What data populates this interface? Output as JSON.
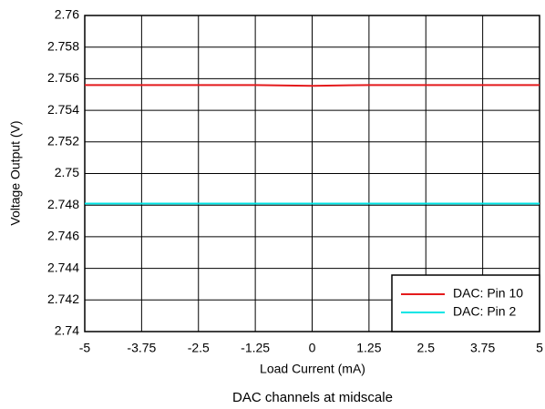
{
  "chart_data": {
    "type": "line",
    "xlabel": "Load Current (mA)",
    "ylabel": "Voltage Output (V)",
    "caption": "DAC channels at midscale",
    "x": [
      -5,
      -3.75,
      -2.5,
      -1.25,
      0,
      1.25,
      2.5,
      3.75,
      5
    ],
    "series": [
      {
        "name": "DAC: Pin 10",
        "color": "#e41a1c",
        "values": [
          2.7556,
          2.7556,
          2.7556,
          2.7556,
          2.75555,
          2.7556,
          2.7556,
          2.7556,
          2.7556
        ]
      },
      {
        "name": "DAC: Pin 2",
        "color": "#00e5e5",
        "values": [
          2.7481,
          2.7481,
          2.7481,
          2.7481,
          2.7481,
          2.7481,
          2.7481,
          2.7481,
          2.7481
        ]
      }
    ],
    "xlim": [
      -5,
      5
    ],
    "xticks": [
      -5,
      -3.75,
      -2.5,
      -1.25,
      0,
      1.25,
      2.5,
      3.75,
      5
    ],
    "ylim": [
      2.74,
      2.76
    ],
    "yticks": [
      2.74,
      2.742,
      2.744,
      2.746,
      2.748,
      2.75,
      2.752,
      2.754,
      2.756,
      2.758,
      2.76
    ],
    "grid": true,
    "legend": "lower-right"
  }
}
